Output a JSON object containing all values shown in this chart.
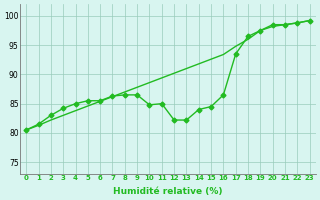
{
  "line1_x": [
    0,
    1,
    2,
    3,
    4,
    5,
    6,
    7,
    8,
    9,
    10,
    11,
    12,
    13,
    14,
    15,
    16,
    17,
    18,
    19,
    20,
    21,
    22,
    23
  ],
  "line1_y": [
    80.5,
    81.3,
    82.2,
    83.0,
    83.8,
    84.6,
    85.4,
    86.2,
    87.0,
    87.8,
    88.6,
    89.4,
    90.2,
    91.0,
    91.8,
    92.6,
    93.4,
    94.8,
    96.0,
    97.5,
    98.2,
    98.5,
    98.8,
    99.2
  ],
  "line2_x": [
    0,
    1,
    2,
    3,
    4,
    5,
    6,
    7,
    8,
    9,
    10,
    11,
    12,
    13,
    14,
    15,
    16,
    17,
    18,
    19,
    20,
    21,
    22,
    23
  ],
  "line2_y": [
    80.5,
    81.5,
    83.0,
    84.2,
    85.0,
    85.5,
    85.5,
    86.3,
    86.5,
    86.5,
    84.8,
    85.0,
    82.2,
    82.2,
    84.0,
    84.5,
    86.5,
    93.5,
    96.5,
    97.5,
    98.5,
    98.5,
    98.8,
    99.2
  ],
  "xlabel": "Humidité relative (%)",
  "ylim": [
    73,
    102
  ],
  "xlim": [
    -0.5,
    23.5
  ],
  "yticks": [
    75,
    80,
    85,
    90,
    95,
    100
  ],
  "xticks": [
    0,
    1,
    2,
    3,
    4,
    5,
    6,
    7,
    8,
    9,
    10,
    11,
    12,
    13,
    14,
    15,
    16,
    17,
    18,
    19,
    20,
    21,
    22,
    23
  ],
  "line_color": "#22bb22",
  "bg_color": "#d8f5f0",
  "grid_color": "#99ccbb",
  "marker": "D",
  "marker_size": 2.5,
  "line_width": 1.0
}
